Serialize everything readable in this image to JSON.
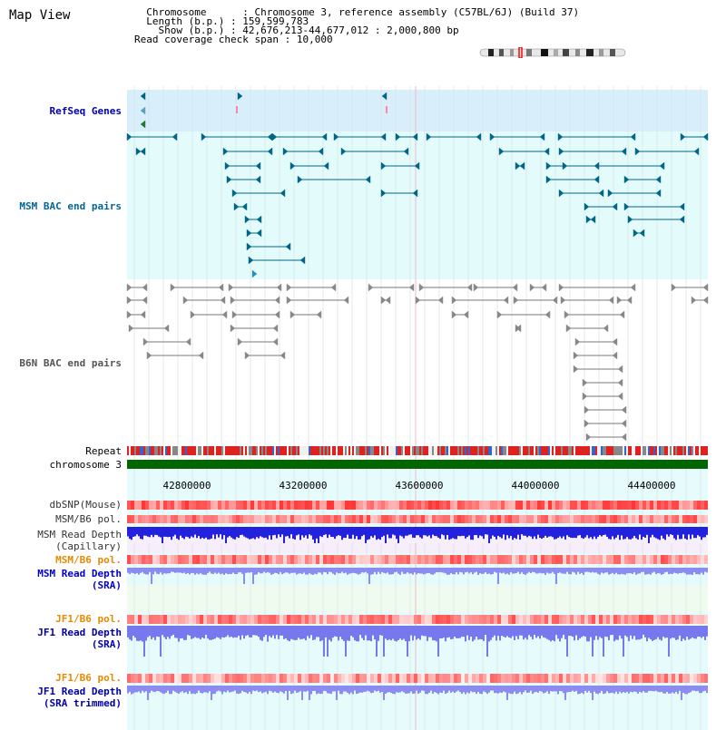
{
  "title": "Map View",
  "info": {
    "chromosome_label": "Chromosome",
    "chromosome_value": "Chromosome 3, reference assembly (C57BL/6J) (Build 37)",
    "length_label": "Length (b.p.)",
    "length_value": "159,599,783",
    "show_label": "Show (b.p.)",
    "show_value": "42,676,213-44,677,012 : 2,000,800 bp",
    "coverage_label": "Read coverage check span",
    "coverage_value": "10,000"
  },
  "tracks": {
    "refseq": "RefSeq Genes",
    "msm_bac": "MSM BAC end pairs",
    "b6n_bac": "B6N BAC end pairs",
    "repeat": "Repeat",
    "chromosome": "chromosome 3",
    "dbsnp": "dbSNP(Mouse)",
    "msm_b6_pol_1": "MSM/B6 pol.",
    "msm_depth_cap_1": "MSM Read Depth",
    "msm_depth_cap_2": "(Capillary)",
    "msm_b6_pol_2": "MSM/B6 pol.",
    "msm_depth_sra_1": "MSM Read Depth",
    "msm_depth_sra_2": "(SRA)",
    "jf1_b6_pol_1": "JF1/B6 pol.",
    "jf1_depth_sra_1": "JF1 Read Depth",
    "jf1_depth_sra_2": "(SRA)",
    "jf1_b6_pol_2": "JF1/B6 pol.",
    "jf1_depth_trim_1": "JF1 Read Depth",
    "jf1_depth_trim_2": "(SRA trimmed)"
  },
  "axis_ticks": [
    "42800000",
    "43200000",
    "43600000",
    "44000000",
    "44400000"
  ],
  "colors": {
    "refseq_label": "#0000aa",
    "msm_label": "#006699",
    "b6n_label": "#555555",
    "pol_label": "#e68a00",
    "msm_depth_label": "#0000cc",
    "jf1_depth_label": "#0000aa",
    "refseq_bg": "#d8eefa",
    "msm_bg": "#e4fbfb",
    "lower_bg": "#e6fbfb",
    "chromosome_bar": "#006600",
    "gene_feature": "#006688",
    "b6n_feature": "#777777",
    "depth_blue": "#2222dd",
    "depth_light": "#8c8cf0"
  }
}
